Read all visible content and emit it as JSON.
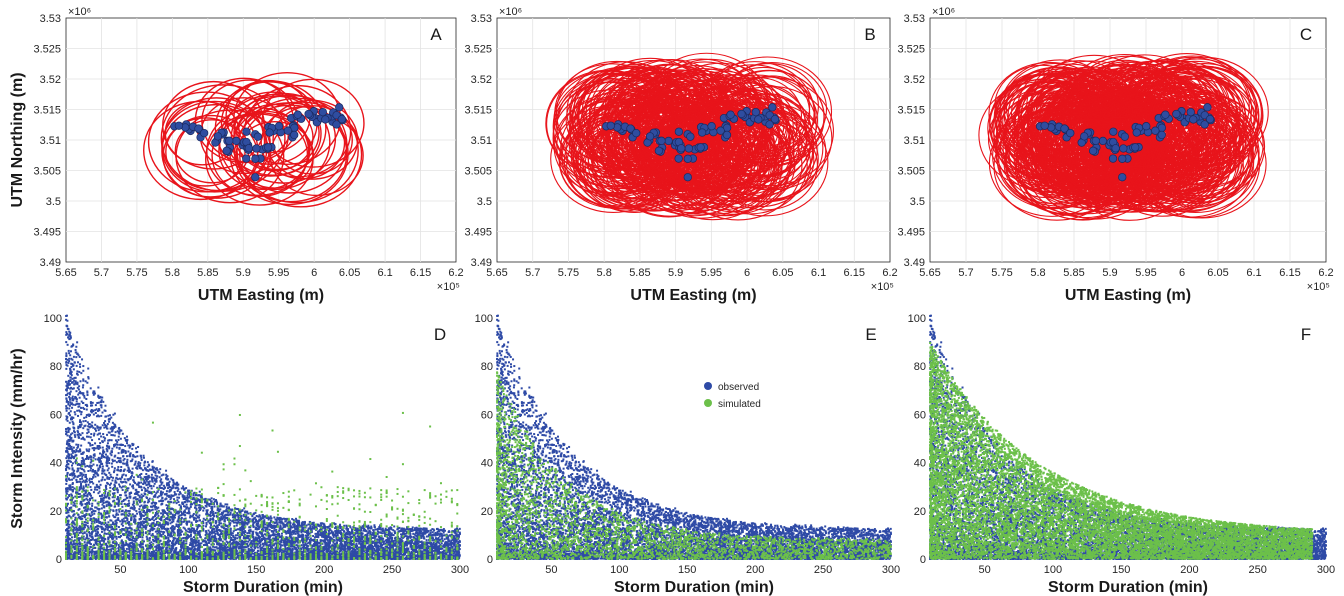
{
  "colors": {
    "circle": "#e8141b",
    "station": "#2f4da0",
    "observed": "#2e4aa6",
    "simulated": "#6cc04a",
    "grid": "#e3e3e3",
    "axis": "#262626"
  },
  "chart_data": [
    {
      "type": "scatter",
      "panel": "A",
      "xlabel": "UTM Easting (m)",
      "ylabel": "UTM Northing (m)",
      "x_multiplier": "×10⁵",
      "y_multiplier": "×10⁶",
      "xlim": [
        565000,
        620000
      ],
      "ylim": [
        3490000,
        3530000
      ],
      "xticks": [
        "5.65",
        "5.7",
        "5.75",
        "5.8",
        "5.85",
        "5.9",
        "5.95",
        "6",
        "6.05",
        "6.1",
        "6.15",
        "6.2"
      ],
      "yticks": [
        "3.49",
        "3.495",
        "3.5",
        "3.505",
        "3.51",
        "3.515",
        "3.52",
        "3.525",
        "3.53"
      ],
      "grid": true,
      "series": [
        {
          "kind": "storm_circles",
          "count": 40,
          "radius_range_m": [
            5000,
            9000
          ]
        },
        {
          "kind": "rain_gauges",
          "count": 85
        }
      ]
    },
    {
      "type": "scatter",
      "panel": "B",
      "xlabel": "UTM Easting (m)",
      "ylabel": "UTM Northing (m)",
      "x_multiplier": "×10⁵",
      "y_multiplier": "×10⁶",
      "xlim": [
        565000,
        620000
      ],
      "ylim": [
        3490000,
        3530000
      ],
      "xticks": [
        "5.65",
        "5.7",
        "5.75",
        "5.8",
        "5.85",
        "5.9",
        "5.95",
        "6",
        "6.05",
        "6.1",
        "6.15",
        "6.2"
      ],
      "yticks": [
        "3.49",
        "3.495",
        "3.5",
        "3.505",
        "3.51",
        "3.515",
        "3.52",
        "3.525",
        "3.53"
      ],
      "grid": true,
      "series": [
        {
          "kind": "storm_circles",
          "count": 320,
          "radius_range_m": [
            5000,
            9000
          ]
        },
        {
          "kind": "rain_gauges",
          "count": 85
        }
      ]
    },
    {
      "type": "scatter",
      "panel": "C",
      "xlabel": "UTM Easting (m)",
      "ylabel": "UTM Northing (m)",
      "x_multiplier": "×10⁵",
      "y_multiplier": "×10⁶",
      "xlim": [
        565000,
        620000
      ],
      "ylim": [
        3490000,
        3530000
      ],
      "xticks": [
        "5.65",
        "5.7",
        "5.75",
        "5.8",
        "5.85",
        "5.9",
        "5.95",
        "6",
        "6.05",
        "6.1",
        "6.15",
        "6.2"
      ],
      "yticks": [
        "3.49",
        "3.495",
        "3.5",
        "3.505",
        "3.51",
        "3.515",
        "3.52",
        "3.525",
        "3.53"
      ],
      "grid": true,
      "series": [
        {
          "kind": "storm_circles",
          "count": 420,
          "radius_range_m": [
            5000,
            9000
          ]
        },
        {
          "kind": "rain_gauges",
          "count": 85
        }
      ]
    },
    {
      "type": "scatter",
      "panel": "D",
      "xlabel": "Storm Duration (min)",
      "ylabel": "Storm Intensity (mm/hr)",
      "xlim": [
        10,
        300
      ],
      "ylim": [
        0,
        100
      ],
      "xticks": [
        "50",
        "100",
        "150",
        "200",
        "250",
        "300"
      ],
      "yticks": [
        "0",
        "20",
        "40",
        "60",
        "80",
        "100"
      ],
      "series": [
        {
          "name": "observed",
          "count": 9000,
          "intensity_envelope": "decays from ~100 mm/hr at 10 min to ~15 mm/hr at 300 min"
        },
        {
          "name": "simulated",
          "count": 1400,
          "intensity_envelope": "sparse, mostly below 30 mm/hr"
        }
      ]
    },
    {
      "type": "scatter",
      "panel": "E",
      "xlabel": "Storm Duration (min)",
      "xlim": [
        10,
        300
      ],
      "ylim": [
        0,
        100
      ],
      "xticks": [
        "50",
        "100",
        "150",
        "200",
        "250",
        "300"
      ],
      "yticks": [
        "0",
        "20",
        "40",
        "60",
        "80",
        "100"
      ],
      "legend": {
        "placement": "top-center",
        "entries": [
          "observed",
          "simulated"
        ]
      },
      "series": [
        {
          "name": "observed",
          "count": 9000
        },
        {
          "name": "simulated",
          "count": 3200,
          "intensity_envelope": "moderate, up to ~70 mm/hr at short durations"
        }
      ]
    },
    {
      "type": "scatter",
      "panel": "F",
      "xlabel": "Storm Duration (min)",
      "xlim": [
        10,
        300
      ],
      "ylim": [
        0,
        100
      ],
      "xticks": [
        "50",
        "100",
        "150",
        "200",
        "250",
        "300"
      ],
      "yticks": [
        "0",
        "20",
        "40",
        "60",
        "80",
        "100"
      ],
      "series": [
        {
          "name": "observed",
          "count": 9000
        },
        {
          "name": "simulated",
          "count": 11000,
          "intensity_envelope": "dense, covers most of observed cloud"
        }
      ]
    }
  ]
}
